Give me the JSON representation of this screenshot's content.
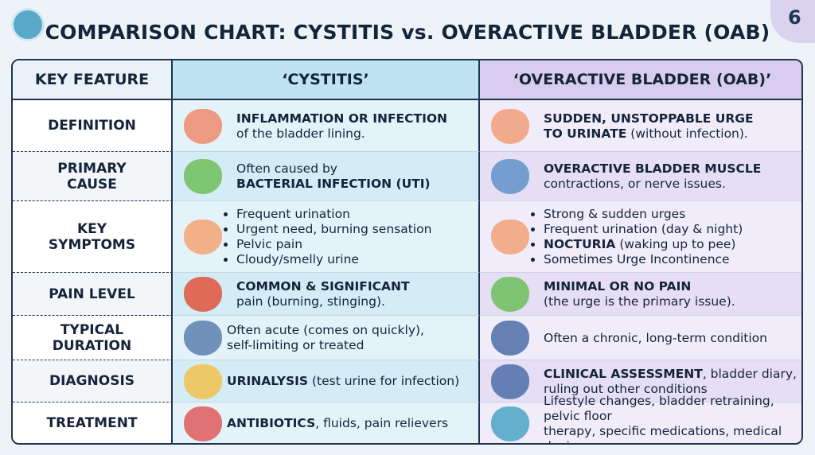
{
  "header": {
    "title": "COMPARISON CHART: CYSTITIS vs. OVERACTIVE BLADDER (OAB)",
    "badge": "6"
  },
  "columns": [
    "KEY FEATURE",
    "‘CYSTITIS’",
    "‘OVERACTIVE BLADDER (OAB)’"
  ],
  "rows": [
    {
      "key": "DEFINITION",
      "cystitis": {
        "lines": [
          [
            {
              "text": "INFLAMMATION OR INFECTION",
              "bold": true
            }
          ],
          [
            {
              "text": "of the bladder lining.",
              "bold": false
            }
          ]
        ]
      },
      "oab": {
        "lines": [
          [
            {
              "text": "SUDDEN, UNSTOPPABLE URGE",
              "bold": true
            }
          ],
          [
            {
              "text": "TO URINATE",
              "bold": true
            },
            {
              "text": " (without infection).",
              "bold": false
            }
          ]
        ]
      }
    },
    {
      "key": "PRIMARY CAUSE",
      "cystitis": {
        "lines": [
          [
            {
              "text": "Often caused by",
              "bold": false
            }
          ],
          [
            {
              "text": "BACTERIAL INFECTION (UTI)",
              "bold": true
            }
          ]
        ]
      },
      "oab": {
        "lines": [
          [
            {
              "text": "OVERACTIVE BLADDER MUSCLE",
              "bold": true
            }
          ],
          [
            {
              "text": "contractions, or nerve issues.",
              "bold": false
            }
          ]
        ]
      }
    },
    {
      "key": "KEY SYMPTOMS",
      "cystitis": {
        "list": true,
        "lines": [
          [
            {
              "text": "Frequent urination",
              "bold": false
            }
          ],
          [
            {
              "text": "Urgent need, burning sensation",
              "bold": false
            }
          ],
          [
            {
              "text": "Pelvic pain",
              "bold": false
            }
          ],
          [
            {
              "text": "Cloudy/smelly urine",
              "bold": false
            }
          ]
        ]
      },
      "oab": {
        "list": true,
        "lines": [
          [
            {
              "text": "Strong & sudden urges",
              "bold": false
            }
          ],
          [
            {
              "text": "Frequent urination (day & night)",
              "bold": false
            }
          ],
          [
            {
              "text": "NOCTURIA",
              "bold": true
            },
            {
              "text": " (waking up to pee)",
              "bold": false
            }
          ],
          [
            {
              "text": "Sometimes Urge Incontinence",
              "bold": false
            }
          ]
        ]
      }
    },
    {
      "key": "PAIN LEVEL",
      "cystitis": {
        "lines": [
          [
            {
              "text": "COMMON & SIGNIFICANT",
              "bold": true
            }
          ],
          [
            {
              "text": "pain (burning, stinging).",
              "bold": false
            }
          ]
        ]
      },
      "oab": {
        "lines": [
          [
            {
              "text": "MINIMAL OR NO PAIN",
              "bold": true
            }
          ],
          [
            {
              "text": "(the urge is the primary issue).",
              "bold": false
            }
          ]
        ]
      }
    },
    {
      "key": "TYPICAL DURATION",
      "cystitis": {
        "lines": [
          [
            {
              "text": "Often acute (comes on quickly),",
              "bold": false
            }
          ],
          [
            {
              "text": "self-limiting or treated",
              "bold": false
            }
          ]
        ]
      },
      "oab": {
        "lines": [
          [
            {
              "text": "Often a chronic, long-term condition",
              "bold": false
            }
          ]
        ]
      }
    },
    {
      "key": "DIAGNOSIS",
      "cystitis": {
        "lines": [
          [
            {
              "text": "URINALYSIS",
              "bold": true
            },
            {
              "text": " (test urine for infection)",
              "bold": false
            }
          ]
        ]
      },
      "oab": {
        "lines": [
          [
            {
              "text": "CLINICAL ASSESSMENT",
              "bold": true
            },
            {
              "text": ", bladder diary,",
              "bold": false
            }
          ],
          [
            {
              "text": "ruling out other conditions",
              "bold": false
            }
          ]
        ]
      }
    },
    {
      "key": "TREATMENT",
      "cystitis": {
        "lines": [
          [
            {
              "text": "ANTIBIOTICS",
              "bold": true
            },
            {
              "text": ", fluids, pain relievers",
              "bold": false
            }
          ]
        ]
      },
      "oab": {
        "lines": [
          [
            {
              "text": "Lifestyle changes, bladder retraining, pelvic floor",
              "bold": false
            }
          ],
          [
            {
              "text": "therapy, specific medications, medical devices",
              "bold": false
            }
          ]
        ]
      }
    }
  ]
}
